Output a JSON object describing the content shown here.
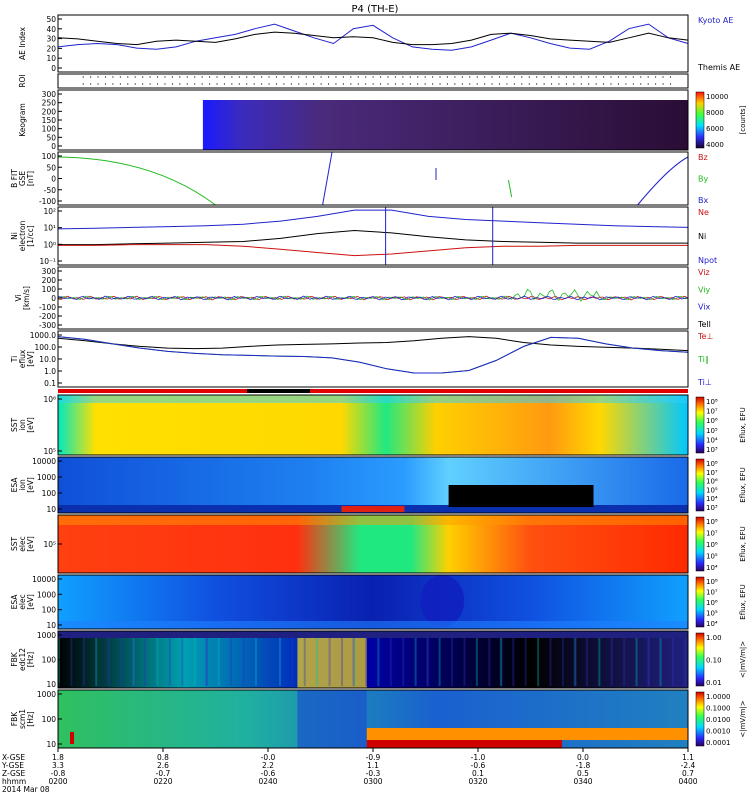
{
  "title": "P4 (TH-E)",
  "colors": {
    "blue": "#2222cc",
    "red": "#cc1111",
    "green": "#22bb22",
    "black": "#000000"
  },
  "panels": [
    {
      "id": "ae",
      "ylabel": [
        "AE Index"
      ],
      "ticks": [
        "50",
        "40",
        "30",
        "20",
        "10",
        "0"
      ],
      "legend": [
        {
          "t": "Kyoto AE",
          "c": "blue"
        },
        {
          "t": "Themis AE",
          "c": "black"
        }
      ]
    },
    {
      "id": "roi",
      "ylabel": [
        "ROI"
      ],
      "ticks": [],
      "legend": []
    },
    {
      "id": "keogram",
      "ylabel": [
        "Keogram"
      ],
      "ticks": [
        "300",
        "250",
        "200",
        "150",
        "100",
        "50",
        "0"
      ],
      "legend": [],
      "cbar": {
        "ticks": [
          "10000",
          "8000",
          "6000",
          "4000"
        ],
        "label": "[counts]"
      }
    },
    {
      "id": "bfit",
      "ylabel": [
        "B FIT",
        "GSE",
        "[nT]"
      ],
      "ticks": [
        "100",
        "50",
        "0",
        "-50",
        "-100"
      ],
      "legend": [
        {
          "t": "Bz",
          "c": "red"
        },
        {
          "t": "By",
          "c": "green"
        },
        {
          "t": "Bx",
          "c": "blue"
        }
      ]
    },
    {
      "id": "ni",
      "ylabel": [
        "Ni",
        "electron",
        "[1/cc]"
      ],
      "ticks": [
        "10²",
        "10¹",
        "10⁰",
        "10⁻¹"
      ],
      "legend": [
        {
          "t": "Ne",
          "c": "red"
        },
        {
          "t": "Ni",
          "c": "black"
        },
        {
          "t": "Npot",
          "c": "blue"
        }
      ]
    },
    {
      "id": "vi",
      "ylabel": [
        "Vi",
        "[km/s]"
      ],
      "ticks": [
        "300",
        "200",
        "100",
        "0",
        "-100",
        "-200",
        "-300"
      ],
      "legend": [
        {
          "t": "Viz",
          "c": "red"
        },
        {
          "t": "Viy",
          "c": "green"
        },
        {
          "t": "Vix",
          "c": "blue"
        },
        {
          "t": "Tell",
          "c": "black"
        }
      ]
    },
    {
      "id": "ti",
      "ylabel": [
        "Ti",
        "eflux",
        "[eV]"
      ],
      "ticks": [
        "1000.0",
        "100.0",
        "10.0",
        "1.0",
        "0.1"
      ],
      "legend": [
        {
          "t": "Te⊥",
          "c": "red"
        },
        {
          "t": "Ti∥",
          "c": "green"
        },
        {
          "t": "Ti⊥",
          "c": "blue"
        }
      ]
    },
    {
      "id": "sst_i",
      "ylabel": [
        "SST",
        "ion",
        "[eV]"
      ],
      "ticks": [
        "10⁶",
        "10⁵"
      ],
      "legend": [],
      "cbar": {
        "ticks": [
          "10⁸",
          "10⁷",
          "10⁶",
          "10⁵",
          "10⁴",
          "10³"
        ],
        "label": "Eflux, EFU"
      }
    },
    {
      "id": "esa_i",
      "ylabel": [
        "ESA",
        "ion",
        "[eV]"
      ],
      "ticks": [
        "10000",
        "1000",
        "100",
        "10"
      ],
      "legend": [],
      "cbar": {
        "ticks": [
          "10⁸",
          "10⁷",
          "10⁶",
          "10⁵",
          "10⁴",
          "10³"
        ],
        "label": "Eflux, EFU"
      }
    },
    {
      "id": "sst_e",
      "ylabel": [
        "SST",
        "elec",
        "[eV]"
      ],
      "ticks": [
        "10⁵"
      ],
      "legend": [],
      "cbar": {
        "ticks": [
          "10⁸",
          "10⁷",
          "10⁶",
          "10⁵",
          "10⁴"
        ],
        "label": "Eflux, EFU"
      }
    },
    {
      "id": "esa_e",
      "ylabel": [
        "ESA",
        "elec",
        "[eV]"
      ],
      "ticks": [
        "10000",
        "1000",
        "100",
        "10"
      ],
      "legend": [],
      "cbar": {
        "ticks": [
          "10⁸",
          "10⁷",
          "10⁶",
          "10⁵",
          "10⁴"
        ],
        "label": "Eflux, EFU"
      }
    },
    {
      "id": "fbk1",
      "ylabel": [
        "FBK",
        "edc12",
        "[Hz]"
      ],
      "ticks": [
        "1000",
        "100",
        "10"
      ],
      "legend": [],
      "cbar": {
        "ticks": [
          "1.00",
          "0.10",
          "0.01"
        ],
        "label": "<|mV/m|>"
      }
    },
    {
      "id": "fbk2",
      "ylabel": [
        "FBK",
        "scm1",
        "[Hz]"
      ],
      "ticks": [
        "1000",
        "100",
        "10"
      ],
      "legend": [],
      "cbar": {
        "ticks": [
          "1.0000",
          "0.1000",
          "0.0100",
          "0.0010",
          "0.0001"
        ],
        "label": "<|mV/m|>"
      }
    }
  ],
  "xaxis": {
    "row_labels": [
      "X-GSE",
      "Y-GSE",
      "Z-GSE",
      "hhmm",
      "2014 Mar 08"
    ],
    "columns": [
      {
        "x": "1.8",
        "y": "3.3",
        "z": "-0.8",
        "t": "0200"
      },
      {
        "x": "0.8",
        "y": "2.6",
        "z": "-0.7",
        "t": "0220"
      },
      {
        "x": "-0.0",
        "y": "2.2",
        "z": "-0.6",
        "t": "0240"
      },
      {
        "x": "-0.9",
        "y": "1.1",
        "z": "-0.3",
        "t": "0300"
      },
      {
        "x": "-1.0",
        "y": "-0.6",
        "z": "0.1",
        "t": "0320"
      },
      {
        "x": "0.0",
        "y": "-1.8",
        "z": "0.5",
        "t": "0340"
      },
      {
        "x": "1.1",
        "y": "-2.4",
        "z": "0.7",
        "t": "0400"
      }
    ]
  },
  "chart_data": {
    "type": "line",
    "title": "P4 (TH-E)",
    "x_time": [
      "0200",
      "0220",
      "0240",
      "0300",
      "0320",
      "0340",
      "0400"
    ],
    "ae_index": {
      "series": [
        {
          "name": "Kyoto AE",
          "values": [
            22,
            24,
            25,
            24,
            21,
            20,
            22,
            27,
            30,
            33,
            38,
            42,
            36,
            30,
            25,
            38,
            41,
            30,
            22,
            20,
            19,
            22,
            28,
            34,
            30,
            25,
            21,
            20,
            27,
            38,
            42,
            30,
            25
          ]
        },
        {
          "name": "Themis AE",
          "values": [
            30,
            29,
            27,
            25,
            24,
            27,
            28,
            27,
            26,
            29,
            33,
            35,
            34,
            32,
            30,
            31,
            30,
            26,
            24,
            24,
            25,
            28,
            33,
            34,
            32,
            29,
            28,
            27,
            26,
            30,
            34,
            30,
            28
          ]
        }
      ],
      "ylim": [
        0,
        50
      ]
    },
    "ni_density": {
      "series": [
        {
          "name": "Npot",
          "values": [
            0.8,
            0.85,
            0.9,
            0.95,
            1.0,
            1.1,
            1.3,
            1.6,
            2.0,
            2.0,
            1.6,
            1.4,
            1.3,
            1.2,
            1.1,
            1.0,
            0.95,
            0.9
          ]
        },
        {
          "name": "Ni",
          "values": [
            -0.2,
            -0.2,
            -0.15,
            -0.1,
            -0.05,
            0.0,
            0.2,
            0.5,
            0.7,
            0.55,
            0.3,
            0.1,
            0.0,
            -0.05,
            -0.1,
            -0.1,
            -0.1,
            -0.1
          ]
        },
        {
          "name": "Ne",
          "values": [
            -0.25,
            -0.25,
            -0.2,
            -0.2,
            -0.2,
            -0.3,
            -0.5,
            -0.7,
            -0.9,
            -0.8,
            -0.6,
            -0.4,
            -0.3,
            -0.3,
            -0.25,
            -0.25,
            -0.25,
            -0.25
          ]
        }
      ]
    },
    "ti_temperature": {
      "series": [
        {
          "name": "Te⊥",
          "values": [
            300,
            200,
            120,
            80,
            60,
            55,
            60,
            80,
            100,
            110,
            120,
            140,
            150,
            200,
            300,
            400,
            300,
            150,
            100,
            80,
            70,
            60,
            50,
            40
          ]
        },
        {
          "name": "Ti∥",
          "values": [
            400,
            250,
            120,
            60,
            35,
            25,
            20,
            18,
            16,
            15,
            12,
            6,
            2,
            1,
            1,
            1.5,
            8,
            80,
            350,
            300,
            120,
            60,
            40,
            30
          ]
        },
        {
          "name": "Ti⊥",
          "values": [
            400,
            250,
            120,
            60,
            35,
            25,
            20,
            18,
            16,
            15,
            12,
            6,
            2,
            1,
            1,
            1.5,
            8,
            80,
            350,
            300,
            120,
            60,
            40,
            30
          ]
        }
      ]
    }
  }
}
